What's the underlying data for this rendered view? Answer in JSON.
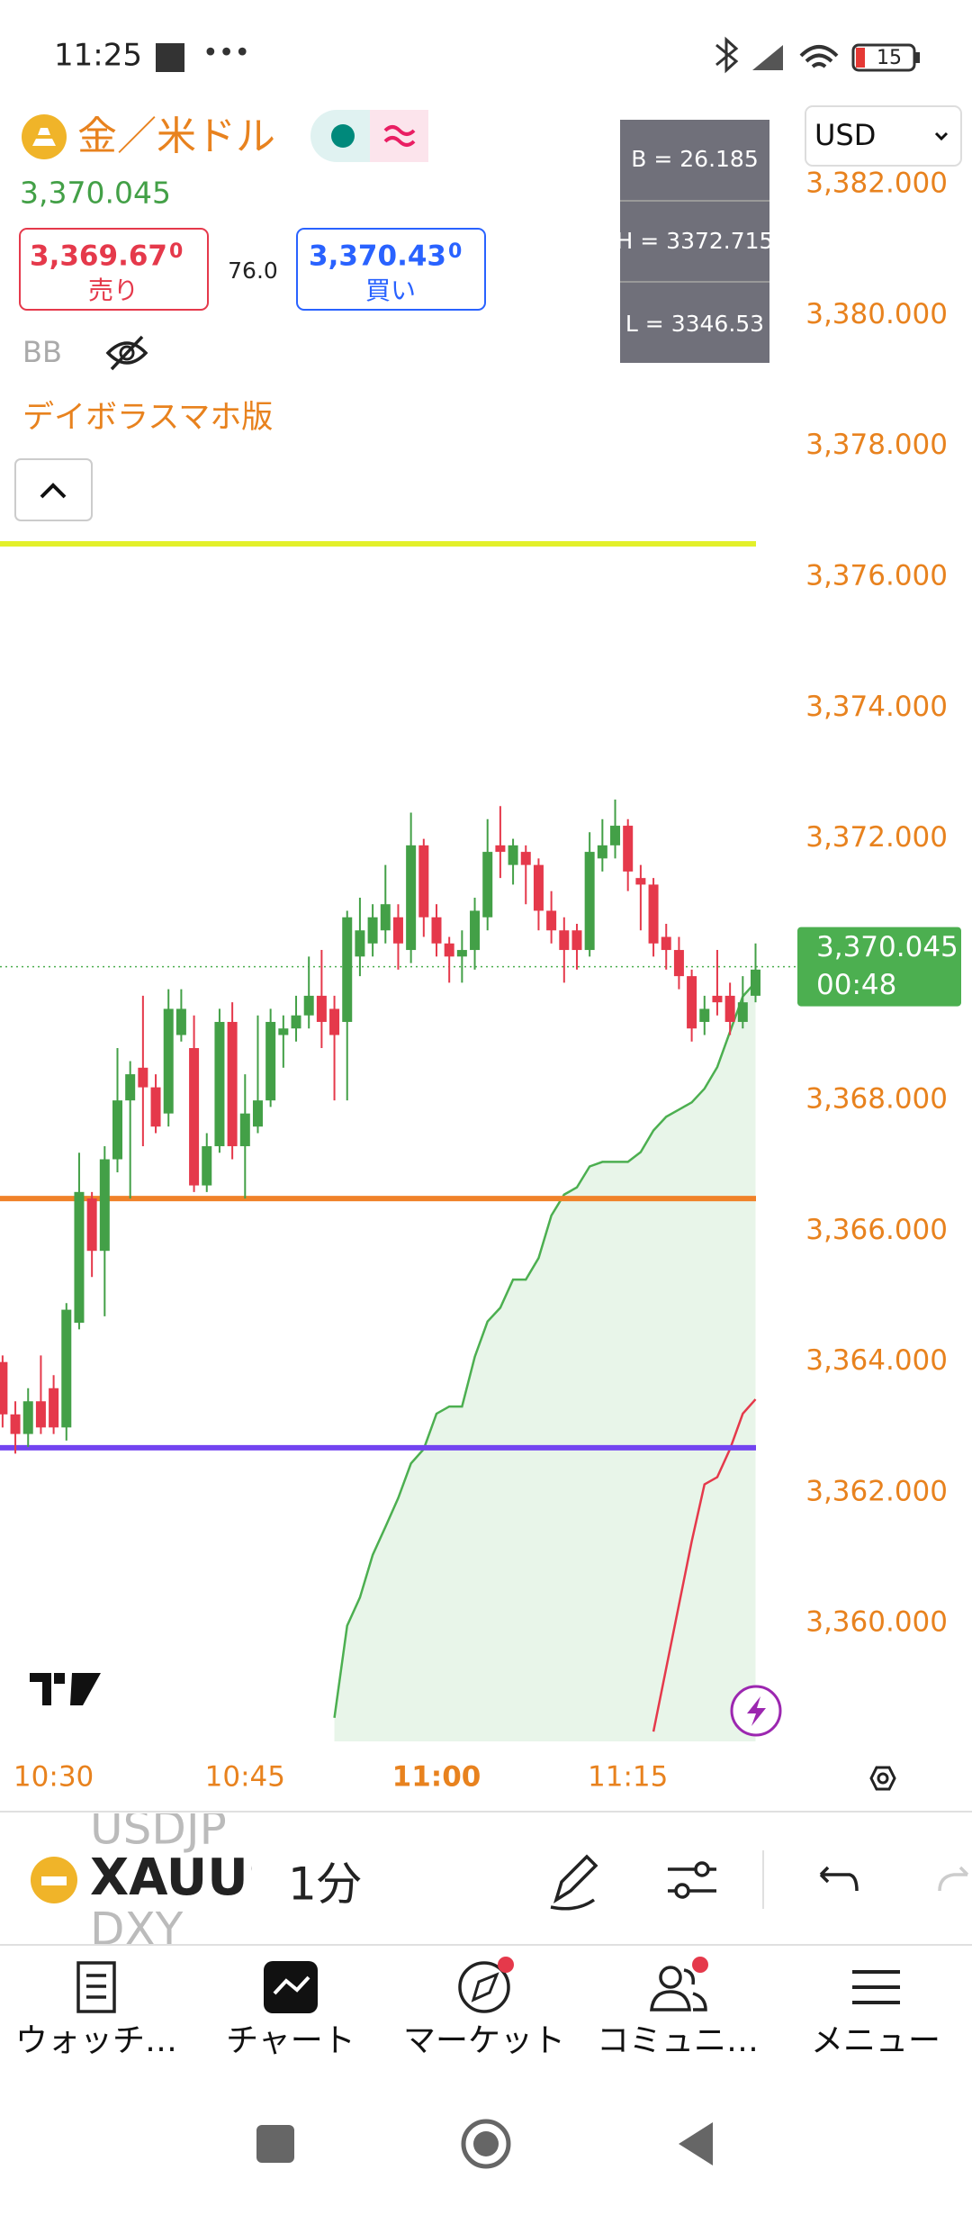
{
  "status_bar": {
    "time": "11:25",
    "battery": "15"
  },
  "header": {
    "symbol": "金／米ドル",
    "price": "3,370.045",
    "sell": {
      "price": "3,369.67",
      "pip": "0",
      "label": "売り"
    },
    "spread": "76.0",
    "buy": {
      "price": "3,370.43",
      "pip": "0",
      "label": "買い"
    },
    "indicator": "BB",
    "script_name": "デイボラスマホ版",
    "currency": "USD"
  },
  "stats_box": [
    "B = 26.185",
    "H = 3372.715",
    "L = 3346.53"
  ],
  "chart_data": {
    "type": "candlestick",
    "x": [
      "10:26",
      "10:27",
      "10:28",
      "10:29",
      "10:30",
      "10:31",
      "10:32",
      "10:33",
      "10:34",
      "10:35",
      "10:36",
      "10:37",
      "10:38",
      "10:39",
      "10:40",
      "10:41",
      "10:42",
      "10:43",
      "10:44",
      "10:45",
      "10:46",
      "10:47",
      "10:48",
      "10:49",
      "10:50",
      "10:51",
      "10:52",
      "10:53",
      "10:54",
      "10:55",
      "10:56",
      "10:57",
      "10:58",
      "10:59",
      "11:00",
      "11:01",
      "11:02",
      "11:03",
      "11:04",
      "11:05",
      "11:06",
      "11:07",
      "11:08",
      "11:09",
      "11:10",
      "11:11",
      "11:12",
      "11:13",
      "11:14",
      "11:15",
      "11:16",
      "11:17",
      "11:18",
      "11:19",
      "11:20",
      "11:21",
      "11:22",
      "11:23",
      "11:24",
      "11:25"
    ],
    "open": [
      3364.0,
      3363.2,
      3362.9,
      3363.4,
      3363.6,
      3363.0,
      3364.6,
      3366.5,
      3365.7,
      3367.1,
      3368.0,
      3368.5,
      3368.2,
      3367.8,
      3369.0,
      3368.8,
      3366.7,
      3367.3,
      3369.2,
      3367.3,
      3367.6,
      3368.0,
      3369.0,
      3369.1,
      3369.3,
      3369.6,
      3369.4,
      3369.2,
      3370.2,
      3370.4,
      3370.6,
      3370.8,
      3370.3,
      3371.9,
      3370.8,
      3370.4,
      3370.2,
      3370.3,
      3370.8,
      3371.9,
      3371.6,
      3371.8,
      3371.6,
      3370.9,
      3370.6,
      3370.6,
      3370.3,
      3371.7,
      3371.9,
      3372.2,
      3371.4,
      3371.3,
      3370.5,
      3370.3,
      3369.9,
      3369.2,
      3369.6,
      3369.6,
      3369.2,
      3369.6
    ],
    "high": [
      3364.1,
      3363.4,
      3363.6,
      3364.1,
      3363.8,
      3364.9,
      3367.2,
      3366.6,
      3367.3,
      3368.8,
      3368.6,
      3369.6,
      3368.4,
      3369.7,
      3369.7,
      3369.3,
      3367.5,
      3369.4,
      3369.5,
      3368.4,
      3369.3,
      3369.4,
      3369.3,
      3369.6,
      3370.2,
      3370.3,
      3369.6,
      3370.9,
      3371.1,
      3371.0,
      3371.6,
      3371.0,
      3372.4,
      3372.0,
      3371.0,
      3370.5,
      3370.6,
      3371.1,
      3372.3,
      3372.5,
      3372.0,
      3371.9,
      3371.7,
      3371.2,
      3370.8,
      3370.7,
      3372.1,
      3372.3,
      3372.6,
      3372.3,
      3371.6,
      3371.4,
      3370.7,
      3370.5,
      3370.0,
      3369.6,
      3370.3,
      3369.8,
      3369.9,
      3370.4
    ],
    "low": [
      3363.0,
      3362.6,
      3362.7,
      3362.9,
      3362.9,
      3362.8,
      3364.5,
      3365.3,
      3364.7,
      3366.9,
      3366.5,
      3367.3,
      3367.5,
      3367.6,
      3368.9,
      3366.6,
      3366.6,
      3367.2,
      3367.1,
      3366.5,
      3367.5,
      3367.9,
      3368.5,
      3368.9,
      3369.1,
      3368.8,
      3368.0,
      3368.0,
      3369.9,
      3370.2,
      3370.4,
      3370.0,
      3370.1,
      3370.5,
      3370.2,
      3369.8,
      3369.8,
      3370.0,
      3370.6,
      3371.4,
      3371.3,
      3371.0,
      3370.6,
      3370.4,
      3369.8,
      3370.0,
      3370.2,
      3371.5,
      3371.7,
      3371.2,
      3370.6,
      3370.2,
      3370.0,
      3369.7,
      3368.9,
      3369.0,
      3369.3,
      3369.0,
      3369.1,
      3369.5
    ],
    "close": [
      3363.2,
      3362.9,
      3363.4,
      3363.0,
      3363.0,
      3364.8,
      3366.6,
      3365.7,
      3367.1,
      3368.0,
      3368.4,
      3368.2,
      3367.6,
      3369.4,
      3369.4,
      3366.7,
      3367.3,
      3369.2,
      3367.3,
      3367.8,
      3368.0,
      3369.2,
      3369.1,
      3369.3,
      3369.6,
      3369.2,
      3369.0,
      3370.8,
      3370.6,
      3370.8,
      3371.0,
      3370.4,
      3371.9,
      3370.8,
      3370.4,
      3370.2,
      3370.3,
      3370.9,
      3371.8,
      3371.8,
      3371.9,
      3371.6,
      3370.9,
      3370.6,
      3370.3,
      3370.3,
      3371.8,
      3371.9,
      3372.2,
      3371.5,
      3371.3,
      3370.4,
      3370.3,
      3369.9,
      3369.1,
      3369.4,
      3369.5,
      3369.2,
      3369.5,
      3370.0
    ],
    "up_color": "#43a047",
    "down_color": "#e5394b",
    "ylim": [
      3358.2,
      3383.2
    ],
    "yticks": [
      {
        "value": 3382,
        "label": "3,382.000"
      },
      {
        "value": 3380,
        "label": "3,380.000"
      },
      {
        "value": 3378,
        "label": "3,378.000"
      },
      {
        "value": 3376,
        "label": "3,376.000"
      },
      {
        "value": 3374,
        "label": "3,374.000"
      },
      {
        "value": 3372,
        "label": "3,372.000"
      },
      {
        "value": 3370,
        "label": "3,370.000"
      },
      {
        "value": 3368,
        "label": "3,368.000"
      },
      {
        "value": 3366,
        "label": "3,366.000"
      },
      {
        "value": 3364,
        "label": "3,364.000"
      },
      {
        "value": 3362,
        "label": "3,362.000"
      },
      {
        "value": 3360,
        "label": "3,360.000"
      }
    ],
    "xticks": [
      "10:30",
      "10:45",
      "11:00",
      "11:15"
    ],
    "grid": false,
    "last_price": {
      "value": 3370.045,
      "label": "3,370.045",
      "countdown": "00:48",
      "color": "#4caf50"
    },
    "levels": [
      {
        "value": 3376.51,
        "color": "#e3f02a"
      },
      {
        "value": 3366.5,
        "color": "#f0822a"
      },
      {
        "value": 3362.69,
        "color": "#7344f0"
      }
    ],
    "overlays": [
      {
        "color": "#4caf50",
        "fill": "#e8f5e9",
        "x": [
          "10:52",
          "10:53",
          "10:54",
          "10:55",
          "10:56",
          "10:57",
          "10:58",
          "10:59",
          "11:00",
          "11:01",
          "11:02",
          "11:03",
          "11:04",
          "11:05",
          "11:06",
          "11:07",
          "11:08",
          "11:09",
          "11:10",
          "11:11",
          "11:12",
          "11:13",
          "11:14",
          "11:15",
          "11:16",
          "11:17",
          "11:18",
          "11:19",
          "11:20",
          "11:21",
          "11:22",
          "11:23",
          "11:24",
          "11:25"
        ],
        "values": [
          3358.56,
          3359.97,
          3360.4,
          3361.05,
          3361.48,
          3361.92,
          3362.45,
          3362.67,
          3363.21,
          3363.32,
          3363.32,
          3364.08,
          3364.62,
          3364.83,
          3365.26,
          3365.26,
          3365.59,
          3366.24,
          3366.56,
          3366.67,
          3366.99,
          3367.06,
          3367.06,
          3367.06,
          3367.21,
          3367.54,
          3367.75,
          3367.86,
          3367.97,
          3368.18,
          3368.51,
          3369.05,
          3369.59,
          3369.81
        ]
      },
      {
        "color": "#e5394b",
        "x": [
          "11:17",
          "11:18",
          "11:19",
          "11:20",
          "11:21",
          "11:22",
          "11:23",
          "11:24",
          "11:25"
        ],
        "values": [
          3358.35,
          3359.32,
          3360.29,
          3361.26,
          3362.13,
          3362.24,
          3362.67,
          3363.21,
          3363.43
        ]
      }
    ]
  },
  "toolbar": {
    "symbols": [
      "USDJP",
      "XAUUS",
      "DXY"
    ],
    "interval": "1分"
  },
  "nav": [
    "ウォッチ…",
    "チャート",
    "マーケット",
    "コミュニ…",
    "メニュー"
  ]
}
